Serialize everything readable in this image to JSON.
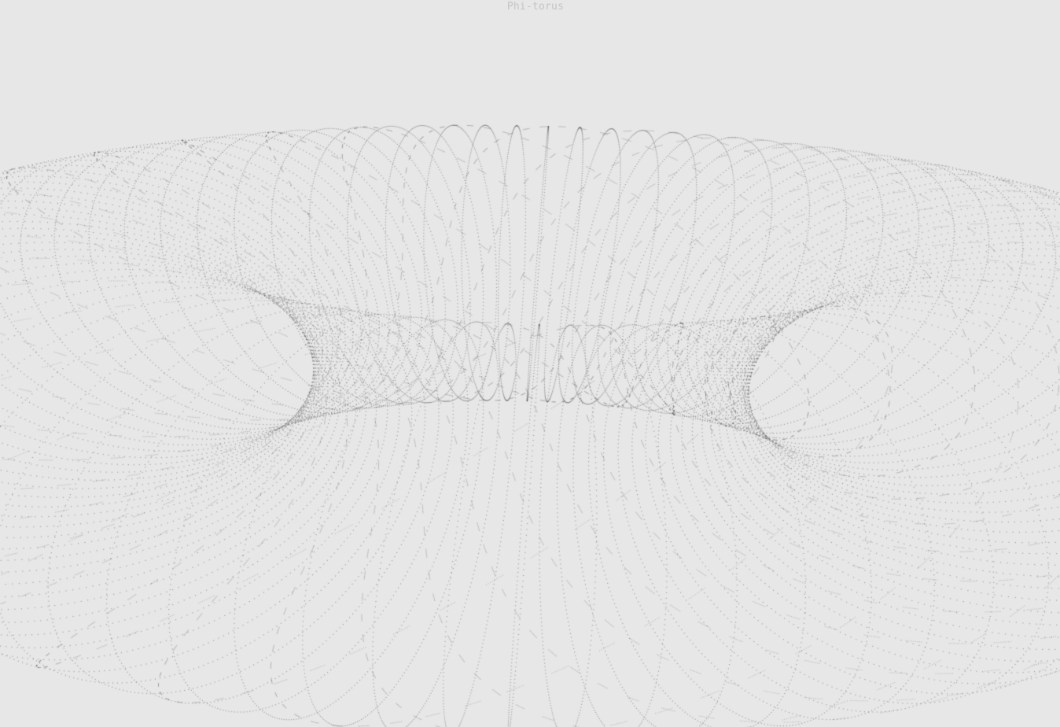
{
  "title": "Phi-torus",
  "colors": {
    "background": "#e7e7e7",
    "title": "#c4c4c4",
    "dots": "#5a5a5a"
  }
}
